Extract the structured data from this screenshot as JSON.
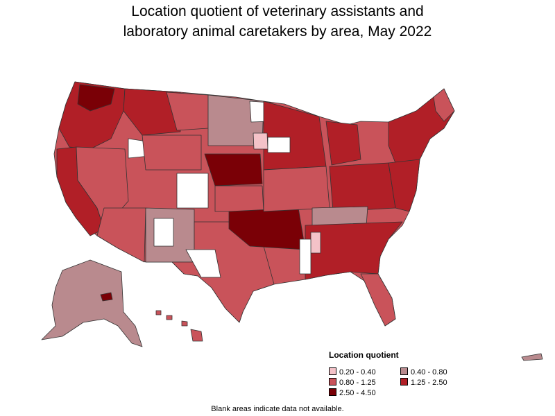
{
  "title_line1": "Location quotient of veterinary assistants and",
  "title_line2": "laboratory animal caretakers by area, May 2022",
  "legend": {
    "title": "Location quotient",
    "items": [
      {
        "label": "0.20 - 0.40",
        "color": "#f4c2c8"
      },
      {
        "label": "0.40 - 0.80",
        "color": "#b98a8e"
      },
      {
        "label": "0.80 - 1.25",
        "color": "#c9535a"
      },
      {
        "label": "1.25 - 2.50",
        "color": "#b11f27"
      },
      {
        "label": "2.50 - 4.50",
        "color": "#7a0006"
      }
    ]
  },
  "footnote": "Blank areas indicate data not available.",
  "colors": {
    "border": "#333333",
    "no_data": "#ffffff"
  }
}
